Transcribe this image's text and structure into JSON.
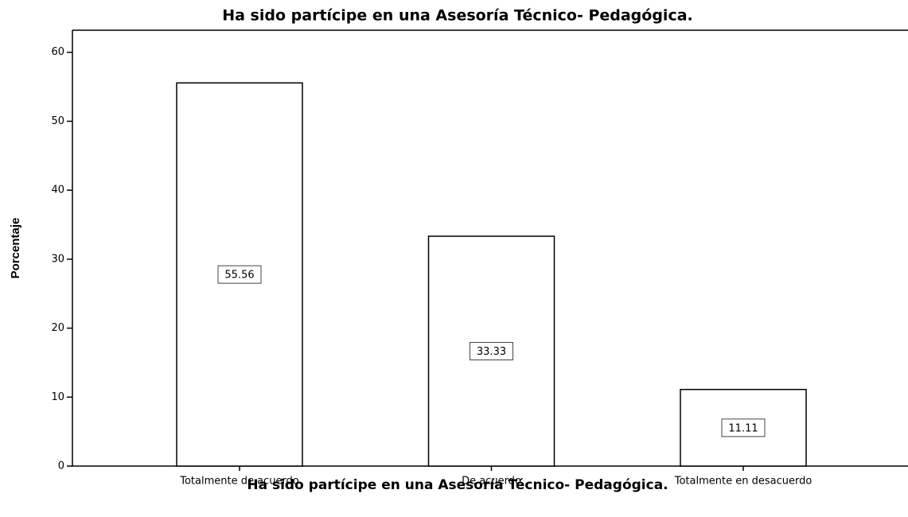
{
  "chart_data": {
    "type": "bar",
    "title": "Ha sido partícipe en una Asesoría Técnico- Pedagógica.",
    "x_label": "Ha sido partícipe en una Asesoría Técnico- Pedagógica.",
    "y_label": "Porcentaje",
    "categories": [
      "Totalmente de acuerdo",
      "De acuerdo",
      "Totalmente en desacuerdo"
    ],
    "values": [
      55.56,
      33.33,
      11.11
    ],
    "color": "#ffffff",
    "ylim": [
      0,
      63.2
    ],
    "yticks": [
      0,
      10,
      20,
      30,
      40,
      50,
      60
    ],
    "grid": false
  }
}
